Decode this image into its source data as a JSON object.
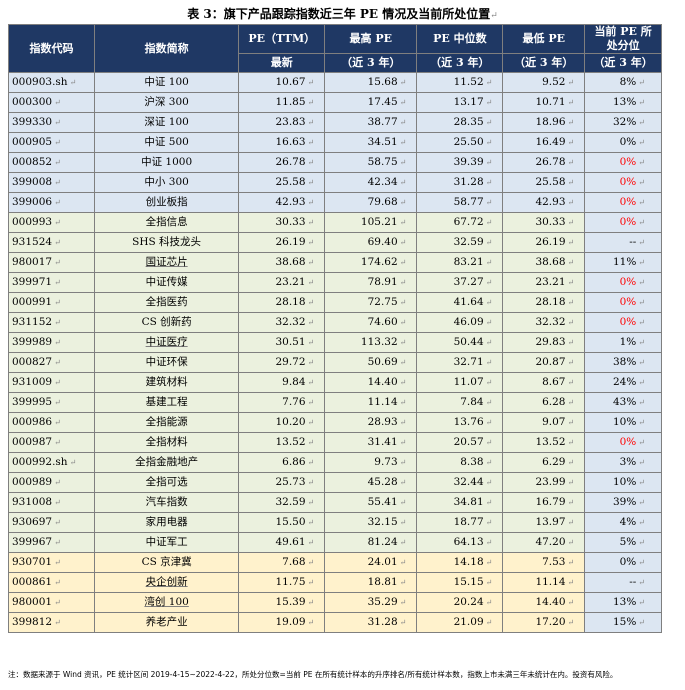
{
  "title": "表 3：旗下产品跟踪指数近三年 PE 情况及当前所处位置",
  "headers": {
    "code": "指数代码",
    "name": "指数简称",
    "pe_ttm": "PE（TTM）",
    "pe_ttm_sub": "最新",
    "max_pe": "最高 PE",
    "max_pe_sub": "（近 3 年）",
    "median_pe": "PE 中位数",
    "median_pe_sub": "（近 3 年）",
    "min_pe": "最低 PE",
    "min_pe_sub": "（近 3 年）",
    "pct_line1": "当前 PE 所",
    "pct_line2": "处分位",
    "pct_sub": "（近 3 年）"
  },
  "colors": {
    "header_bg": "#1f3864",
    "blue_group": "#dce6f2",
    "green_group": "#ebf1de",
    "yellow_group": "#fff2cc",
    "highlight_text": "#ff0000"
  },
  "rows": [
    {
      "code": "000903.sh",
      "name": "中证 100",
      "pe": "10.67",
      "max": "15.68",
      "median": "11.52",
      "min": "9.52",
      "pct": "8%",
      "group": "blue",
      "red": false
    },
    {
      "code": "000300",
      "name": "沪深 300",
      "pe": "11.85",
      "max": "17.45",
      "median": "13.17",
      "min": "10.71",
      "pct": "13%",
      "group": "blue",
      "red": false
    },
    {
      "code": "399330",
      "name": "深证 100",
      "pe": "23.83",
      "max": "38.77",
      "median": "28.35",
      "min": "18.96",
      "pct": "32%",
      "group": "blue",
      "red": false
    },
    {
      "code": "000905",
      "name": "中证 500",
      "pe": "16.63",
      "max": "34.51",
      "median": "25.50",
      "min": "16.49",
      "pct": "0%",
      "group": "blue",
      "red": false
    },
    {
      "code": "000852",
      "name": "中证 1000",
      "pe": "26.78",
      "max": "58.75",
      "median": "39.39",
      "min": "26.78",
      "pct": "0%",
      "group": "blue",
      "red": true
    },
    {
      "code": "399008",
      "name": "中小 300",
      "pe": "25.58",
      "max": "42.34",
      "median": "31.28",
      "min": "25.58",
      "pct": "0%",
      "group": "blue",
      "red": true
    },
    {
      "code": "399006",
      "name": "创业板指",
      "pe": "42.93",
      "max": "79.68",
      "median": "58.77",
      "min": "42.93",
      "pct": "0%",
      "group": "blue",
      "red": true
    },
    {
      "code": "000993",
      "name": "全指信息",
      "pe": "30.33",
      "max": "105.21",
      "median": "67.72",
      "min": "30.33",
      "pct": "0%",
      "group": "green",
      "red": true
    },
    {
      "code": "931524",
      "name": "SHS 科技龙头",
      "pe": "26.19",
      "max": "69.40",
      "median": "32.59",
      "min": "26.19",
      "pct": "--",
      "group": "green",
      "red": false
    },
    {
      "code": "980017",
      "name": "国证芯片",
      "pe": "38.68",
      "max": "174.62",
      "median": "83.21",
      "min": "38.68",
      "pct": "11%",
      "group": "green",
      "red": false,
      "underline": true
    },
    {
      "code": "399971",
      "name": "中证传媒",
      "pe": "23.21",
      "max": "78.91",
      "median": "37.27",
      "min": "23.21",
      "pct": "0%",
      "group": "green",
      "red": true
    },
    {
      "code": "000991",
      "name": "全指医药",
      "pe": "28.18",
      "max": "72.75",
      "median": "41.64",
      "min": "28.18",
      "pct": "0%",
      "group": "green",
      "red": true
    },
    {
      "code": "931152",
      "name": "CS 创新药",
      "pe": "32.32",
      "max": "74.60",
      "median": "46.09",
      "min": "32.32",
      "pct": "0%",
      "group": "green",
      "red": true
    },
    {
      "code": "399989",
      "name": "中证医疗",
      "pe": "30.51",
      "max": "113.32",
      "median": "50.44",
      "min": "29.83",
      "pct": "1%",
      "group": "green",
      "red": false,
      "underline": true
    },
    {
      "code": "000827",
      "name": "中证环保",
      "pe": "29.72",
      "max": "50.69",
      "median": "32.71",
      "min": "20.87",
      "pct": "38%",
      "group": "green",
      "red": false
    },
    {
      "code": "931009",
      "name": "建筑材料",
      "pe": "9.84",
      "max": "14.40",
      "median": "11.07",
      "min": "8.67",
      "pct": "24%",
      "group": "green",
      "red": false
    },
    {
      "code": "399995",
      "name": "基建工程",
      "pe": "7.76",
      "max": "11.14",
      "median": "7.84",
      "min": "6.28",
      "pct": "43%",
      "group": "green",
      "red": false
    },
    {
      "code": "000986",
      "name": "全指能源",
      "pe": "10.20",
      "max": "28.93",
      "median": "13.76",
      "min": "9.07",
      "pct": "10%",
      "group": "green",
      "red": false
    },
    {
      "code": "000987",
      "name": "全指材料",
      "pe": "13.52",
      "max": "31.41",
      "median": "20.57",
      "min": "13.52",
      "pct": "0%",
      "group": "green",
      "red": true
    },
    {
      "code": "000992.sh",
      "name": "全指金融地产",
      "pe": "6.86",
      "max": "9.73",
      "median": "8.38",
      "min": "6.29",
      "pct": "3%",
      "group": "green",
      "red": false
    },
    {
      "code": "000989",
      "name": "全指可选",
      "pe": "25.73",
      "max": "45.28",
      "median": "32.44",
      "min": "23.99",
      "pct": "10%",
      "group": "green",
      "red": false
    },
    {
      "code": "931008",
      "name": "汽车指数",
      "pe": "32.59",
      "max": "55.41",
      "median": "34.81",
      "min": "16.79",
      "pct": "39%",
      "group": "green",
      "red": false
    },
    {
      "code": "930697",
      "name": "家用电器",
      "pe": "15.50",
      "max": "32.15",
      "median": "18.77",
      "min": "13.97",
      "pct": "4%",
      "group": "green",
      "red": false
    },
    {
      "code": "399967",
      "name": "中证军工",
      "pe": "49.61",
      "max": "81.24",
      "median": "64.13",
      "min": "47.20",
      "pct": "5%",
      "group": "green",
      "red": false
    },
    {
      "code": "930701",
      "name": "CS 京津冀",
      "pe": "7.68",
      "max": "24.01",
      "median": "14.18",
      "min": "7.53",
      "pct": "0%",
      "group": "yellow",
      "red": false
    },
    {
      "code": "000861",
      "name": "央企创新",
      "pe": "11.75",
      "max": "18.81",
      "median": "15.15",
      "min": "11.14",
      "pct": "--",
      "group": "yellow",
      "red": false,
      "underline": true
    },
    {
      "code": "980001",
      "name": "湾创 100",
      "pe": "15.39",
      "max": "35.29",
      "median": "20.24",
      "min": "14.40",
      "pct": "13%",
      "group": "yellow",
      "red": false,
      "underline": true
    },
    {
      "code": "399812",
      "name": "养老产业",
      "pe": "19.09",
      "max": "31.28",
      "median": "21.09",
      "min": "17.20",
      "pct": "15%",
      "group": "yellow",
      "red": false
    }
  ],
  "note": "注：数据来源于 Wind 资讯，PE 统计区间 2019-4-15~2022-4-22，所处分位数=当前 PE 在所有统计样本的升序排名/所有统计样本数，指数上市未满三年未统计在内。投资有风险。"
}
